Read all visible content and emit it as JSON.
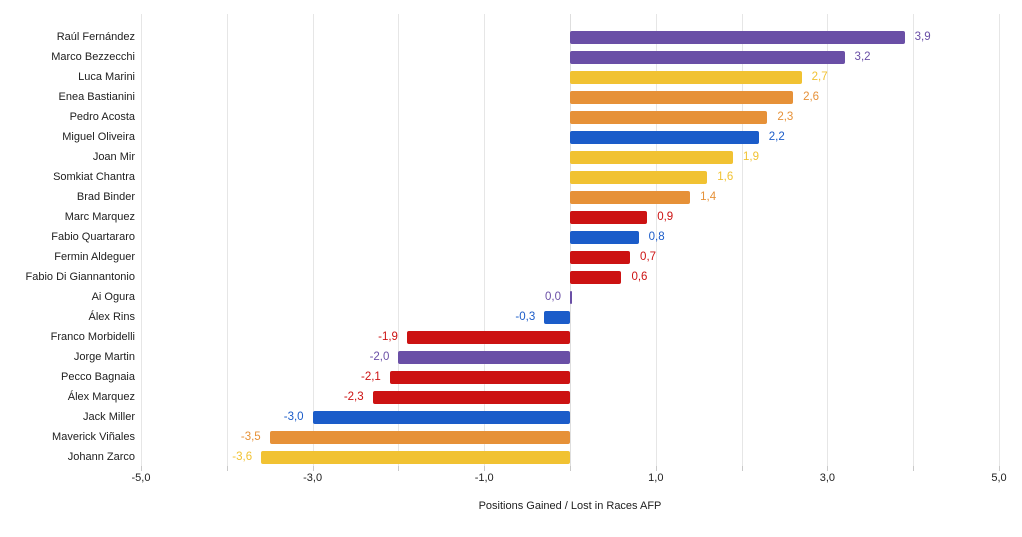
{
  "chart_data": {
    "type": "bar",
    "orientation": "horizontal",
    "title": "",
    "xlabel": "Positions Gained / Lost in Races AFP",
    "ylabel": "",
    "xlim": [
      -5,
      5
    ],
    "gridline_step": 1,
    "grid": true,
    "legend_position": "none",
    "x_ticks": [
      {
        "value": -5,
        "label": "-5,0"
      },
      {
        "value": -3,
        "label": "-3,0"
      },
      {
        "value": -1,
        "label": "-1,0"
      },
      {
        "value": 1,
        "label": "1,0"
      },
      {
        "value": 3,
        "label": "3,0"
      },
      {
        "value": 5,
        "label": "5,0"
      }
    ],
    "colors": {
      "purple": "#6A4FA6",
      "yellow": "#F1C232",
      "orange": "#E69138",
      "red": "#CC1212",
      "blue": "#1B5CC9"
    },
    "riders": [
      {
        "name": "Raúl Fernández",
        "value": 3.9,
        "label": "3,9",
        "color": "purple"
      },
      {
        "name": "Marco Bezzecchi",
        "value": 3.2,
        "label": "3,2",
        "color": "purple"
      },
      {
        "name": "Luca Marini",
        "value": 2.7,
        "label": "2,7",
        "color": "yellow"
      },
      {
        "name": "Enea Bastianini",
        "value": 2.6,
        "label": "2,6",
        "color": "orange"
      },
      {
        "name": "Pedro Acosta",
        "value": 2.3,
        "label": "2,3",
        "color": "orange"
      },
      {
        "name": "Miguel Oliveira",
        "value": 2.2,
        "label": "2,2",
        "color": "blue"
      },
      {
        "name": "Joan Mir",
        "value": 1.9,
        "label": "1,9",
        "color": "yellow"
      },
      {
        "name": "Somkiat Chantra",
        "value": 1.6,
        "label": "1,6",
        "color": "yellow"
      },
      {
        "name": "Brad Binder",
        "value": 1.4,
        "label": "1,4",
        "color": "orange"
      },
      {
        "name": "Marc Marquez",
        "value": 0.9,
        "label": "0,9",
        "color": "red"
      },
      {
        "name": "Fabio Quartararo",
        "value": 0.8,
        "label": "0,8",
        "color": "blue"
      },
      {
        "name": "Fermin Aldeguer",
        "value": 0.7,
        "label": "0,7",
        "color": "red"
      },
      {
        "name": "Fabio Di Giannantonio",
        "value": 0.6,
        "label": "0,6",
        "color": "red"
      },
      {
        "name": "Ai Ogura",
        "value": 0.0,
        "label": "0,0",
        "color": "purple"
      },
      {
        "name": "Álex Rins",
        "value": -0.3,
        "label": "-0,3",
        "color": "blue"
      },
      {
        "name": "Franco Morbidelli",
        "value": -1.9,
        "label": "-1,9",
        "color": "red"
      },
      {
        "name": "Jorge Martin",
        "value": -2.0,
        "label": "-2,0",
        "color": "purple"
      },
      {
        "name": "Pecco Bagnaia",
        "value": -2.1,
        "label": "-2,1",
        "color": "red"
      },
      {
        "name": "Álex Marquez",
        "value": -2.3,
        "label": "-2,3",
        "color": "red"
      },
      {
        "name": "Jack Miller",
        "value": -3.0,
        "label": "-3,0",
        "color": "blue"
      },
      {
        "name": "Maverick Viñales",
        "value": -3.5,
        "label": "-3,5",
        "color": "orange"
      },
      {
        "name": "Johann Zarco",
        "value": -3.6,
        "label": "-3,6",
        "color": "yellow"
      }
    ]
  }
}
